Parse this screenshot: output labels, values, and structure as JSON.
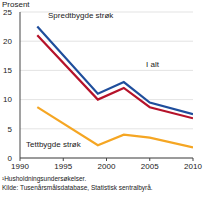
{
  "chart_data": {
    "type": "line",
    "y_label": "Prosent",
    "x": [
      1992,
      1999,
      2002,
      2005,
      2010
    ],
    "series": [
      {
        "name": "Spredtbygde strøk",
        "color": "#1f4e9c",
        "values": [
          22.5,
          11,
          13,
          9.5,
          7.5
        ]
      },
      {
        "name": "I alt",
        "color": "#b5122a",
        "values": [
          21,
          10,
          12,
          8.7,
          6.8
        ]
      },
      {
        "name": "Tettbygde strøk",
        "color": "#f5a623",
        "values": [
          8.7,
          2.2,
          4,
          3.5,
          1.8
        ]
      }
    ],
    "xlim": [
      1990,
      2010
    ],
    "xticks": [
      1990,
      1995,
      2000,
      2005,
      2010
    ],
    "ylim": [
      0,
      25
    ],
    "yticks": [
      0,
      5,
      10,
      15,
      20,
      25
    ],
    "grid": true,
    "notes": [
      "¹Husholdningsundersøkelser.",
      "Kilde: Tusenårsmålsdatabase, Statistisk sentralbyrå."
    ]
  }
}
